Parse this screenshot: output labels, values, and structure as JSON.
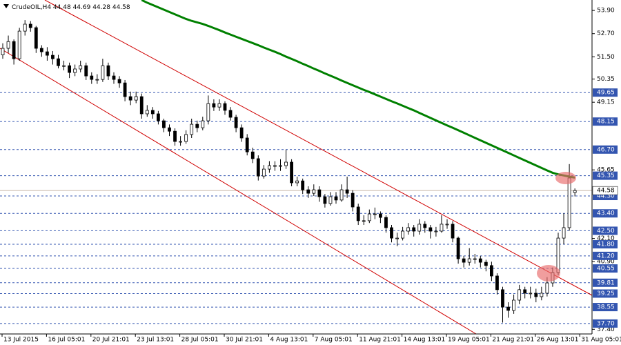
{
  "chart_data": {
    "type": "candlestick",
    "title": "CrudeOIL,H4",
    "open": [
      51.6,
      51.94,
      52.29,
      51.4,
      52.83,
      53.19,
      53.01,
      51.94,
      51.76,
      51.58,
      51.4,
      51.04,
      51.04,
      50.69,
      50.87,
      51.04,
      50.51,
      50.33,
      50.33,
      51.04,
      50.51,
      50.33,
      50.15,
      49.44,
      49.26,
      49.44,
      48.55,
      48.73,
      48.55,
      48.19,
      47.83,
      47.65,
      47.12,
      47.12,
      47.48,
      48.01,
      47.83,
      48.19,
      49.08,
      48.9,
      49.08,
      48.73,
      48.37,
      47.83,
      47.3,
      46.58,
      46.23,
      45.33,
      45.69,
      45.87,
      45.87,
      45.87,
      46.05,
      44.98,
      45.08,
      44.62,
      44.44,
      44.62,
      44.26,
      43.91,
      44.26,
      44.09,
      44.62,
      44.44,
      43.73,
      43.02,
      43.02,
      43.37,
      43.37,
      43.19,
      42.66,
      42.12,
      42.12,
      42.48,
      42.66,
      42.48,
      42.84,
      42.66,
      42.48,
      42.48,
      42.84,
      42.84,
      42.12,
      41.05,
      40.87,
      41.05,
      41.05,
      40.87,
      40.7,
      40.16,
      39.45,
      38.55,
      38.38,
      38.91,
      39.45,
      39.27,
      39.27,
      39.09,
      39.27,
      39.8,
      40.34,
      42.12,
      42.66,
      44.48
    ],
    "high": [
      52.2,
      52.6,
      52.4,
      53.0,
      53.4,
      53.35,
      53.1,
      52.1,
      52.0,
      51.8,
      51.6,
      51.3,
      51.2,
      51.1,
      51.3,
      51.2,
      50.7,
      50.6,
      51.4,
      51.2,
      50.7,
      50.5,
      50.3,
      49.7,
      49.7,
      49.6,
      49.0,
      48.9,
      48.7,
      48.3,
      48.0,
      47.8,
      47.4,
      47.7,
      48.3,
      48.2,
      48.4,
      49.5,
      49.3,
      49.3,
      49.2,
      48.9,
      48.5,
      48.0,
      47.5,
      46.8,
      46.4,
      45.9,
      46.1,
      46.1,
      46.2,
      46.7,
      46.2,
      45.3,
      45.2,
      44.8,
      44.9,
      44.8,
      44.4,
      44.5,
      44.5,
      44.9,
      45.3,
      44.6,
      43.9,
      43.3,
      43.6,
      43.7,
      43.5,
      43.3,
      42.8,
      42.4,
      42.7,
      42.9,
      42.8,
      43.1,
      43.0,
      42.8,
      42.7,
      43.3,
      43.1,
      43.0,
      42.2,
      41.2,
      41.6,
      41.3,
      41.2,
      41.0,
      40.9,
      40.3,
      39.6,
      38.8,
      39.2,
      39.7,
      39.6,
      39.6,
      39.5,
      39.6,
      40.1,
      40.6,
      42.4,
      43.4,
      45.95,
      44.69
    ],
    "low": [
      51.4,
      51.7,
      51.1,
      51.3,
      52.6,
      52.8,
      51.7,
      51.5,
      51.3,
      51.1,
      50.9,
      50.8,
      50.4,
      50.5,
      50.7,
      50.3,
      50.1,
      50.1,
      50.2,
      50.3,
      50.1,
      49.9,
      49.2,
      49.0,
      49.1,
      48.3,
      48.4,
      48.3,
      48.0,
      47.6,
      47.4,
      46.9,
      46.9,
      47.0,
      47.3,
      47.6,
      47.7,
      48.0,
      48.7,
      48.7,
      48.5,
      48.2,
      47.6,
      47.1,
      46.4,
      46.0,
      45.1,
      45.2,
      45.5,
      45.6,
      45.6,
      45.7,
      44.8,
      44.8,
      44.4,
      44.2,
      44.3,
      44.0,
      43.7,
      43.8,
      43.9,
      44.0,
      44.2,
      43.5,
      42.8,
      42.8,
      42.9,
      43.1,
      42.9,
      42.4,
      41.9,
      41.7,
      42.0,
      42.3,
      42.2,
      42.3,
      42.4,
      42.1,
      42.2,
      42.4,
      42.6,
      41.9,
      40.8,
      40.6,
      40.7,
      40.8,
      40.6,
      40.4,
      39.9,
      39.2,
      37.75,
      38.0,
      38.2,
      38.7,
      39.0,
      39.0,
      38.8,
      38.9,
      39.1,
      39.6,
      40.2,
      41.8,
      42.5,
      44.28
    ],
    "close": [
      51.94,
      52.29,
      51.4,
      52.83,
      53.19,
      53.01,
      51.94,
      51.76,
      51.58,
      51.4,
      51.04,
      51.04,
      50.69,
      50.87,
      51.04,
      50.51,
      50.33,
      50.33,
      51.04,
      50.51,
      50.33,
      50.15,
      49.44,
      49.26,
      49.44,
      48.55,
      48.73,
      48.55,
      48.19,
      47.83,
      47.65,
      47.12,
      47.12,
      47.48,
      48.01,
      47.83,
      48.19,
      49.08,
      48.9,
      49.08,
      48.73,
      48.37,
      47.83,
      47.3,
      46.58,
      46.23,
      45.33,
      45.69,
      45.87,
      45.87,
      45.87,
      46.05,
      44.98,
      45.08,
      44.62,
      44.44,
      44.62,
      44.26,
      43.91,
      44.26,
      44.09,
      44.62,
      44.44,
      43.73,
      43.02,
      43.02,
      43.37,
      43.37,
      43.19,
      42.66,
      42.12,
      42.12,
      42.48,
      42.66,
      42.48,
      42.84,
      42.66,
      42.48,
      42.48,
      42.84,
      42.84,
      42.12,
      41.05,
      40.87,
      41.05,
      41.05,
      40.87,
      40.7,
      40.16,
      39.45,
      38.55,
      38.38,
      38.91,
      39.45,
      39.27,
      39.27,
      39.09,
      39.27,
      39.8,
      40.34,
      42.12,
      42.66,
      45.23,
      44.58
    ],
    "moving_average": {
      "color": "#008000",
      "values": [
        null,
        null,
        null,
        null,
        null,
        null,
        null,
        null,
        null,
        null,
        null,
        null,
        null,
        null,
        null,
        null,
        null,
        null,
        null,
        null,
        null,
        null,
        null,
        null,
        null,
        54.44,
        54.3,
        54.18,
        54.06,
        53.94,
        53.82,
        53.7,
        53.58,
        53.46,
        53.36,
        53.28,
        53.2,
        53.1,
        52.99,
        52.88,
        52.76,
        52.65,
        52.54,
        52.43,
        52.32,
        52.21,
        52.1,
        51.98,
        51.87,
        51.76,
        51.64,
        51.51,
        51.39,
        51.27,
        51.14,
        51.02,
        50.89,
        50.77,
        50.64,
        50.52,
        50.4,
        50.27,
        50.15,
        50.03,
        49.91,
        49.79,
        49.68,
        49.56,
        49.44,
        49.32,
        49.2,
        49.09,
        48.97,
        48.85,
        48.73,
        48.6,
        48.47,
        48.34,
        48.21,
        48.08,
        47.95,
        47.83,
        47.7,
        47.57,
        47.44,
        47.31,
        47.18,
        47.05,
        46.92,
        46.79,
        46.66,
        46.53,
        46.4,
        46.27,
        46.14,
        46.01,
        45.88,
        45.75,
        45.62,
        45.5,
        45.42,
        45.36,
        45.3,
        45.25
      ]
    },
    "ylim": [
      37.16,
      54.44
    ],
    "yticks": [
      {
        "value": 53.9,
        "label": "53.90"
      },
      {
        "value": 52.7,
        "label": "52.70"
      },
      {
        "value": 51.5,
        "label": "51.50"
      },
      50.35,
      49.15,
      45.65,
      {
        "value": 42.1,
        "label": "42.10"
      },
      {
        "value": 40.9,
        "label": "40.90"
      },
      {
        "value": 37.4,
        "label": "37.40"
      }
    ],
    "levels": [
      49.65,
      48.15,
      {
        "value": 46.7,
        "label": "46.70"
      },
      45.35,
      {
        "value": 44.3,
        "label": "44.30"
      },
      {
        "value": 43.4,
        "label": "43.40"
      },
      {
        "value": 42.5,
        "label": "42.50"
      },
      {
        "value": 41.8,
        "label": "41.80"
      },
      {
        "value": 41.2,
        "label": "41.20"
      },
      40.55,
      39.81,
      39.25,
      38.55,
      {
        "value": 37.7,
        "label": "37.70"
      }
    ],
    "level_color": "#3355b0",
    "xticks": [
      {
        "value": 0,
        "label": "13 Jul 2015"
      },
      {
        "value": 8,
        "label": "16 Jul 05:01"
      },
      {
        "value": 16,
        "label": "20 Jul 21:01"
      },
      {
        "value": 24,
        "label": "23 Jul 13:01"
      },
      {
        "value": 32,
        "label": "28 Jul 05:01"
      },
      {
        "value": 40,
        "label": "30 Jul 21:01"
      },
      {
        "value": 48,
        "label": "4 Aug 13:01"
      },
      {
        "value": 56,
        "label": "7 Aug 05:01"
      },
      {
        "value": 64,
        "label": "11 Aug 21:01"
      },
      {
        "value": 72,
        "label": "14 Aug 13:01"
      },
      {
        "value": 80,
        "label": "19 Aug 05:01"
      },
      {
        "value": 88,
        "label": "21 Aug 21:01"
      },
      {
        "value": 96,
        "label": "26 Aug 13:01"
      },
      {
        "value": 104,
        "label": "31 Aug 05:01"
      }
    ]
  }
}
